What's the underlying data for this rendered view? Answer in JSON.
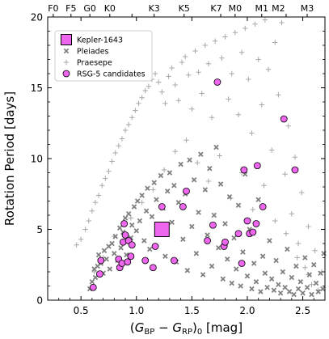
{
  "chart_data": {
    "type": "scatter",
    "title": "",
    "xlabel": "(G_BP − G_RP)_0 [mag]",
    "xlabel_parts": {
      "open": "(",
      "g1": "G",
      "sub1": "BP",
      "minus": " − ",
      "g2": "G",
      "sub2": "RP",
      "close": ")",
      "sub0": "0",
      "unit": " [mag]"
    },
    "ylabel": "Rotation Period [days]",
    "xlim": [
      0.2,
      2.7
    ],
    "ylim": [
      0,
      20
    ],
    "x_ticks": [
      0.5,
      1.0,
      1.5,
      2.0,
      2.5
    ],
    "x_tick_labels": [
      "0.5",
      "1.0",
      "1.5",
      "2.0",
      "2.5"
    ],
    "y_ticks": [
      0,
      5,
      10,
      15,
      20
    ],
    "y_tick_labels": [
      "0",
      "5",
      "10",
      "15",
      "20"
    ],
    "top_axis": {
      "ticks": [
        0.25,
        0.41,
        0.58,
        0.76,
        0.96,
        1.16,
        1.43,
        1.76,
        1.89,
        2.13,
        2.35,
        2.54
      ],
      "labels": [
        "F0",
        "F5",
        "G0",
        "K0",
        "",
        "K3",
        "K5",
        "K7",
        "M0",
        "M1",
        "M2",
        "M3"
      ],
      "label_positions": [
        0.25,
        0.41,
        0.58,
        0.76,
        0.96,
        1.16,
        1.43,
        1.72,
        1.89,
        2.13,
        2.28,
        2.54
      ]
    },
    "legend": {
      "placement": "top-left",
      "entries": [
        {
          "label": "Kepler-1643",
          "marker": "square",
          "color": "#ee66ee"
        },
        {
          "label": "Pleiades",
          "marker": "x",
          "color": "#808080"
        },
        {
          "label": "Praesepe",
          "marker": "plus",
          "color": "#a8a8a8"
        },
        {
          "label": "RSG-5 candidates",
          "marker": "circle",
          "color": "#ee66ee"
        }
      ]
    },
    "series": [
      {
        "name": "Kepler-1643",
        "marker": "square",
        "color": "#ee66ee",
        "points": [
          [
            1.23,
            5.0
          ]
        ]
      },
      {
        "name": "RSG-5 candidates",
        "marker": "circle",
        "color": "#ee66ee",
        "points": [
          [
            0.61,
            0.9
          ],
          [
            0.67,
            1.85
          ],
          [
            0.68,
            2.8
          ],
          [
            0.84,
            2.9
          ],
          [
            0.85,
            2.3
          ],
          [
            0.87,
            2.6
          ],
          [
            0.88,
            4.1
          ],
          [
            0.89,
            5.4
          ],
          [
            0.9,
            4.6
          ],
          [
            0.92,
            2.7
          ],
          [
            0.93,
            4.2
          ],
          [
            0.95,
            3.1
          ],
          [
            0.96,
            3.9
          ],
          [
            1.08,
            2.8
          ],
          [
            1.15,
            2.3
          ],
          [
            1.17,
            3.8
          ],
          [
            1.21,
            5.0
          ],
          [
            1.23,
            6.6
          ],
          [
            1.34,
            2.8
          ],
          [
            1.42,
            6.6
          ],
          [
            1.45,
            7.7
          ],
          [
            1.64,
            4.2
          ],
          [
            1.69,
            5.3
          ],
          [
            1.73,
            15.4
          ],
          [
            1.79,
            3.8
          ],
          [
            1.8,
            4.1
          ],
          [
            1.92,
            4.7
          ],
          [
            1.95,
            2.6
          ],
          [
            1.97,
            9.2
          ],
          [
            2.0,
            5.6
          ],
          [
            2.02,
            4.7
          ],
          [
            2.05,
            4.8
          ],
          [
            2.08,
            5.4
          ],
          [
            2.09,
            9.5
          ],
          [
            2.14,
            6.6
          ],
          [
            2.33,
            12.8
          ],
          [
            2.43,
            9.2
          ]
        ]
      },
      {
        "name": "Pleiades",
        "marker": "x",
        "color": "#808080",
        "points": [
          [
            0.58,
            0.8
          ],
          [
            0.6,
            1.3
          ],
          [
            0.62,
            2.2
          ],
          [
            0.63,
            1.6
          ],
          [
            0.65,
            2.4
          ],
          [
            0.66,
            3.2
          ],
          [
            0.68,
            2.6
          ],
          [
            0.7,
            1.9
          ],
          [
            0.71,
            3.5
          ],
          [
            0.73,
            2.9
          ],
          [
            0.75,
            3.8
          ],
          [
            0.76,
            2.2
          ],
          [
            0.78,
            4.0
          ],
          [
            0.8,
            3.3
          ],
          [
            0.81,
            4.5
          ],
          [
            0.83,
            2.8
          ],
          [
            0.85,
            5.1
          ],
          [
            0.86,
            3.7
          ],
          [
            0.88,
            4.8
          ],
          [
            0.9,
            5.8
          ],
          [
            0.91,
            3.2
          ],
          [
            0.93,
            6.1
          ],
          [
            0.95,
            4.4
          ],
          [
            0.96,
            5.3
          ],
          [
            0.98,
            6.6
          ],
          [
            1.0,
            4.9
          ],
          [
            1.01,
            7.0
          ],
          [
            1.03,
            5.6
          ],
          [
            1.05,
            7.4
          ],
          [
            1.07,
            4.2
          ],
          [
            1.09,
            6.3
          ],
          [
            1.1,
            7.9
          ],
          [
            1.12,
            3.6
          ],
          [
            1.14,
            5.9
          ],
          [
            1.16,
            8.3
          ],
          [
            1.18,
            7.1
          ],
          [
            1.2,
            4.8
          ],
          [
            1.22,
            8.8
          ],
          [
            1.24,
            6.5
          ],
          [
            1.26,
            3.1
          ],
          [
            1.28,
            7.7
          ],
          [
            1.3,
            9.0
          ],
          [
            1.32,
            5.5
          ],
          [
            1.34,
            8.1
          ],
          [
            1.36,
            2.7
          ],
          [
            1.38,
            6.9
          ],
          [
            1.4,
            9.6
          ],
          [
            1.42,
            4.3
          ],
          [
            1.44,
            7.5
          ],
          [
            1.46,
            2.1
          ],
          [
            1.48,
            9.9
          ],
          [
            1.5,
            5.2
          ],
          [
            1.52,
            8.5
          ],
          [
            1.54,
            3.3
          ],
          [
            1.56,
            6.2
          ],
          [
            1.58,
            10.3
          ],
          [
            1.6,
            1.8
          ],
          [
            1.62,
            7.8
          ],
          [
            1.64,
            4.6
          ],
          [
            1.66,
            9.3
          ],
          [
            1.68,
            2.4
          ],
          [
            1.7,
            6.0
          ],
          [
            1.72,
            10.8
          ],
          [
            1.74,
            3.7
          ],
          [
            1.76,
            8.2
          ],
          [
            1.78,
            1.5
          ],
          [
            1.8,
            5.4
          ],
          [
            1.82,
            2.9
          ],
          [
            1.84,
            7.3
          ],
          [
            1.86,
            1.2
          ],
          [
            1.88,
            4.4
          ],
          [
            1.9,
            2.2
          ],
          [
            1.92,
            6.7
          ],
          [
            1.94,
            1.0
          ],
          [
            1.96,
            3.4
          ],
          [
            1.98,
            8.9
          ],
          [
            2.0,
            1.7
          ],
          [
            2.02,
            5.0
          ],
          [
            2.04,
            0.8
          ],
          [
            2.06,
            2.6
          ],
          [
            2.08,
            1.3
          ],
          [
            2.1,
            7.1
          ],
          [
            2.12,
            0.6
          ],
          [
            2.14,
            3.1
          ],
          [
            2.16,
            1.9
          ],
          [
            2.18,
            0.9
          ],
          [
            2.2,
            4.2
          ],
          [
            2.22,
            1.5
          ],
          [
            2.24,
            0.7
          ],
          [
            2.26,
            2.8
          ],
          [
            2.28,
            1.1
          ],
          [
            2.3,
            0.5
          ],
          [
            2.32,
            2.0
          ],
          [
            2.34,
            0.9
          ],
          [
            2.36,
            3.6
          ],
          [
            2.38,
            0.6
          ],
          [
            2.4,
            1.6
          ],
          [
            2.42,
            0.4
          ],
          [
            2.44,
            2.4
          ],
          [
            2.46,
            0.8
          ],
          [
            2.48,
            1.3
          ],
          [
            2.5,
            0.5
          ],
          [
            2.52,
            3.0
          ],
          [
            2.54,
            0.9
          ],
          [
            2.56,
            1.8
          ],
          [
            2.58,
            0.4
          ],
          [
            2.6,
            2.5
          ],
          [
            2.62,
            1.2
          ],
          [
            2.64,
            0.6
          ],
          [
            2.66,
            1.9
          ],
          [
            2.68,
            0.8
          ],
          [
            2.69,
            3.3
          ]
        ]
      },
      {
        "name": "Praesepe",
        "marker": "plus",
        "color": "#a8a8a8",
        "points": [
          [
            0.46,
            3.9
          ],
          [
            0.5,
            4.3
          ],
          [
            0.54,
            5.0
          ],
          [
            0.57,
            5.6
          ],
          [
            0.6,
            6.3
          ],
          [
            0.63,
            6.9
          ],
          [
            0.66,
            7.4
          ],
          [
            0.69,
            8.1
          ],
          [
            0.72,
            8.6
          ],
          [
            0.75,
            9.1
          ],
          [
            0.78,
            9.8
          ],
          [
            0.81,
            10.4
          ],
          [
            0.84,
            10.9
          ],
          [
            0.87,
            11.4
          ],
          [
            0.9,
            12.0
          ],
          [
            0.93,
            12.4
          ],
          [
            0.96,
            12.9
          ],
          [
            0.99,
            13.4
          ],
          [
            1.02,
            13.9
          ],
          [
            1.05,
            14.3
          ],
          [
            1.08,
            14.8
          ],
          [
            1.11,
            15.1
          ],
          [
            1.14,
            15.6
          ],
          [
            1.17,
            16.0
          ],
          [
            1.2,
            15.4
          ],
          [
            1.23,
            14.7
          ],
          [
            1.26,
            13.9
          ],
          [
            1.29,
            15.8
          ],
          [
            1.32,
            16.4
          ],
          [
            1.35,
            15.2
          ],
          [
            1.38,
            14.1
          ],
          [
            1.41,
            16.8
          ],
          [
            1.44,
            17.2
          ],
          [
            1.47,
            15.9
          ],
          [
            1.5,
            13.5
          ],
          [
            1.53,
            17.6
          ],
          [
            1.56,
            16.1
          ],
          [
            1.59,
            14.6
          ],
          [
            1.62,
            18.0
          ],
          [
            1.65,
            16.7
          ],
          [
            1.68,
            12.9
          ],
          [
            1.71,
            18.3
          ],
          [
            1.74,
            15.4
          ],
          [
            1.77,
            17.1
          ],
          [
            1.8,
            18.6
          ],
          [
            1.83,
            14.2
          ],
          [
            1.86,
            16.0
          ],
          [
            1.89,
            18.9
          ],
          [
            1.92,
            13.1
          ],
          [
            1.95,
            17.5
          ],
          [
            1.98,
            19.2
          ],
          [
            2.01,
            15.6
          ],
          [
            2.04,
            11.8
          ],
          [
            2.07,
            19.5
          ],
          [
            2.1,
            17.0
          ],
          [
            2.13,
            13.8
          ],
          [
            2.16,
            19.8
          ],
          [
            2.19,
            16.3
          ],
          [
            2.22,
            10.6
          ],
          [
            2.25,
            18.2
          ],
          [
            2.28,
            14.5
          ],
          [
            2.31,
            19.6
          ],
          [
            2.34,
            8.9
          ],
          [
            2.37,
            12.3
          ],
          [
            2.4,
            6.1
          ],
          [
            2.43,
            10.1
          ],
          [
            2.46,
            4.0
          ],
          [
            2.49,
            7.6
          ],
          [
            2.52,
            2.3
          ],
          [
            2.55,
            5.2
          ],
          [
            2.58,
            1.1
          ],
          [
            2.61,
            3.5
          ],
          [
            2.64,
            0.7
          ],
          [
            2.67,
            2.0
          ],
          [
            0.62,
            2.0
          ],
          [
            0.7,
            3.0
          ],
          [
            0.8,
            4.5
          ],
          [
            0.95,
            5.8
          ],
          [
            1.05,
            6.9
          ],
          [
            1.15,
            7.8
          ],
          [
            1.25,
            9.2
          ],
          [
            1.35,
            10.5
          ],
          [
            1.45,
            11.3
          ],
          [
            1.55,
            9.7
          ],
          [
            1.65,
            8.4
          ],
          [
            1.75,
            10.2
          ],
          [
            1.85,
            7.2
          ],
          [
            1.95,
            9.0
          ],
          [
            2.05,
            6.4
          ],
          [
            2.15,
            8.1
          ],
          [
            2.25,
            5.6
          ],
          [
            2.35,
            4.7
          ],
          [
            2.45,
            3.0
          ],
          [
            2.55,
            1.8
          ]
        ]
      }
    ]
  }
}
